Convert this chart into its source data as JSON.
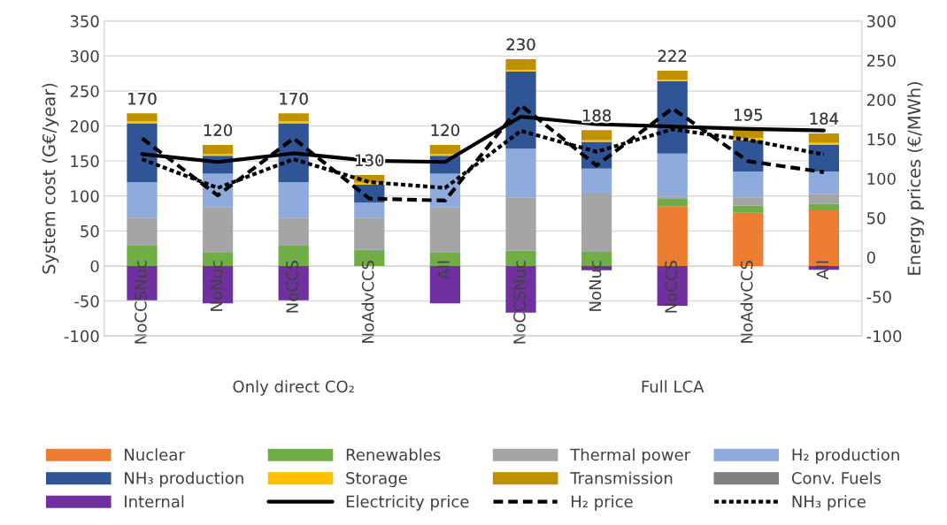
{
  "chart_data": {
    "type": "bar",
    "stacked": true,
    "categories": [
      "NoCCSNuc",
      "NoNuc",
      "NoCCS",
      "NoAdvCCS",
      "All",
      "NoCCSNuc",
      "NoNuc",
      "NoCCS",
      "NoAdvCCS",
      "All"
    ],
    "series": [
      {
        "name": "Nuclear",
        "color": "#ed7d31",
        "values": [
          0,
          0,
          0,
          0,
          0,
          0,
          0,
          85.5,
          76,
          79.5
        ]
      },
      {
        "name": "Renewables",
        "color": "#70ad47",
        "values": [
          29,
          19,
          29,
          23,
          19,
          22,
          20,
          10.5,
          10,
          9.5
        ]
      },
      {
        "name": "Thermal power",
        "color": "#a5a5a5",
        "values": [
          40,
          64.5,
          40,
          46,
          64.5,
          76,
          83.5,
          3.5,
          12,
          13.5
        ]
      },
      {
        "name": "H₂ production",
        "color": "#8faadc",
        "values": [
          51,
          48.5,
          51,
          21.5,
          48.5,
          69.5,
          35.5,
          61,
          37,
          32.5
        ]
      },
      {
        "name": "NH₃ production",
        "color": "#2f5597",
        "values": [
          84,
          25.5,
          84,
          25.5,
          25.5,
          110.5,
          38.5,
          103.5,
          45,
          38
        ]
      },
      {
        "name": "Storage",
        "color": "#ffc000",
        "values": [
          3,
          2.5,
          3,
          3,
          2.5,
          2,
          2.5,
          2.5,
          3,
          3
        ]
      },
      {
        "name": "Transmission",
        "color": "#bf9000",
        "values": [
          11,
          13,
          11,
          11,
          13,
          15.5,
          14,
          12.5,
          12,
          13.5
        ]
      },
      {
        "name": "Conv. Fuels",
        "color": "#7f7f7f",
        "values": [
          0,
          0,
          0,
          0,
          0,
          0,
          0,
          0,
          0,
          0
        ]
      },
      {
        "name": "Internal",
        "color": "#7030a0",
        "values": [
          -49,
          -53.5,
          -49,
          0,
          -53.5,
          -66.5,
          -6,
          -57,
          0,
          -5.5
        ]
      },
      {
        "name": "Electricity price",
        "type": "line",
        "axis": "y2",
        "line_style": "solid",
        "color": "#000000",
        "values": [
          131,
          121,
          132,
          122.5,
          121,
          178.5,
          169,
          166,
          163,
          161
        ]
      },
      {
        "name": "H₂ price",
        "type": "line",
        "axis": "y2",
        "line_style": "dashed",
        "color": "#000000",
        "values": [
          151,
          78.5,
          151,
          74.5,
          72,
          193,
          116.5,
          189,
          122,
          108
        ]
      },
      {
        "name": "NH₃ price",
        "type": "line",
        "axis": "y2",
        "line_style": "dotted",
        "color": "#000000",
        "values": [
          124.5,
          88,
          124.5,
          95.5,
          88,
          160.5,
          134,
          162.5,
          149,
          130.5
        ]
      }
    ],
    "totals": [
      "170",
      "120",
      "170",
      "130",
      "120",
      "230",
      "188",
      "222",
      "195",
      "184"
    ],
    "ylabel": "System cost (G€/year)",
    "y2label": "Energy prices (€/MWh)",
    "ylim": [
      -100,
      350
    ],
    "yticks": [
      -100,
      -50,
      0,
      50,
      100,
      150,
      200,
      250,
      300,
      350
    ],
    "y2lim": [
      -100,
      300
    ],
    "y2ticks": [
      -100,
      -50,
      0,
      50,
      100,
      150,
      200,
      250,
      300
    ],
    "annotations": [
      "Only direct CO₂",
      "Full LCA"
    ],
    "grid": "y",
    "legend": "bottom"
  }
}
